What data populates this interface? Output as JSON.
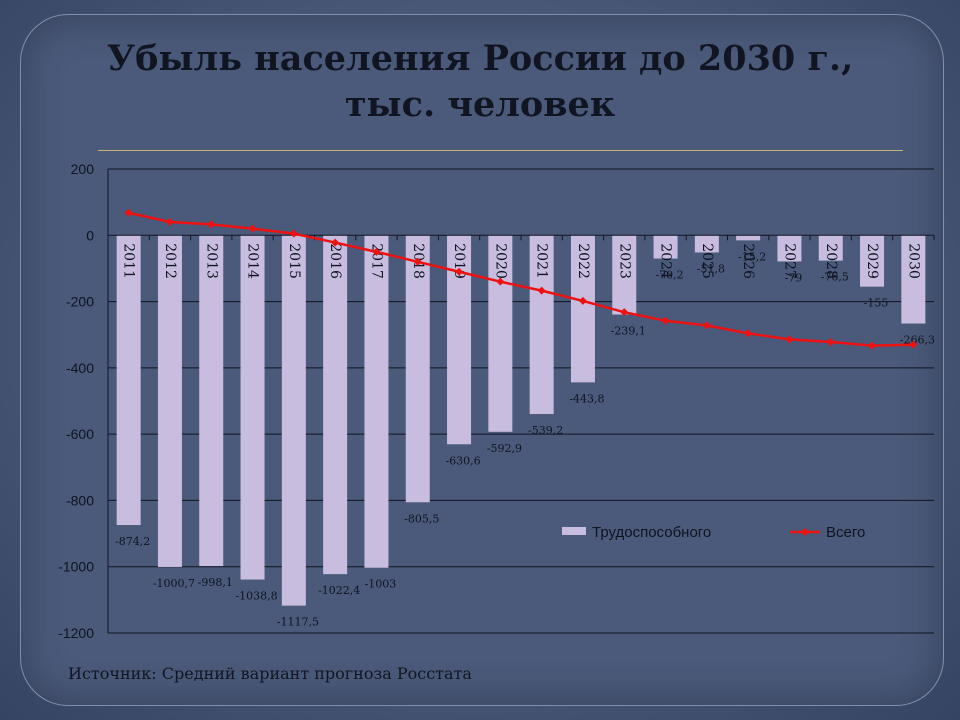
{
  "title_line1": "Убыль населения России  до 2030 г.,",
  "title_line2": "тыс. человек",
  "source": "Источник: Средний вариант прогноза Росстата",
  "colors": {
    "bar": "#c8bddf",
    "line": "#ee1111",
    "text": "#0f1420",
    "grid": "#0f1420"
  },
  "chart_data": {
    "type": "bar",
    "categories": [
      "2011",
      "2012",
      "2013",
      "2014",
      "2015",
      "2016",
      "2017",
      "2018",
      "2019",
      "2020",
      "2021",
      "2022",
      "2023",
      "2024",
      "2025",
      "2026",
      "2027",
      "2028",
      "2029",
      "2030"
    ],
    "ylim": [
      -1200,
      200
    ],
    "yticks": [
      200,
      0,
      -200,
      -400,
      -600,
      -800,
      -1000,
      -1200
    ],
    "grid": true,
    "legend_position": "bottom-right",
    "series": [
      {
        "name": "Трудоспособного",
        "type": "bar",
        "values": [
          -874.2,
          -1000.7,
          -998.1,
          -1038.8,
          -1117.5,
          -1022.4,
          -1003,
          -805.5,
          -630.6,
          -592.9,
          -539.2,
          -443.8,
          -239.1,
          -70.2,
          -51.8,
          -15.2,
          -79,
          -76.5,
          -155,
          -266.3
        ],
        "labels": [
          "-874,2",
          "-1000,7",
          "-998,1",
          "-1038,8",
          "-1117,5",
          "-1022,4",
          "-1003",
          "-805,5",
          "-630,6",
          "-592,9",
          "-539,2",
          "-443,8",
          "-239,1",
          "-70,2",
          "-51,8",
          "-15,2",
          "-79",
          "-76,5",
          "-155",
          "-266,3"
        ]
      },
      {
        "name": "Всего",
        "type": "line",
        "values": [
          68,
          40,
          33,
          20,
          5,
          -22,
          -50,
          -80,
          -110,
          -140,
          -167,
          -198,
          -232,
          -258,
          -272,
          -296,
          -314,
          -322,
          -333,
          -330
        ]
      }
    ]
  }
}
